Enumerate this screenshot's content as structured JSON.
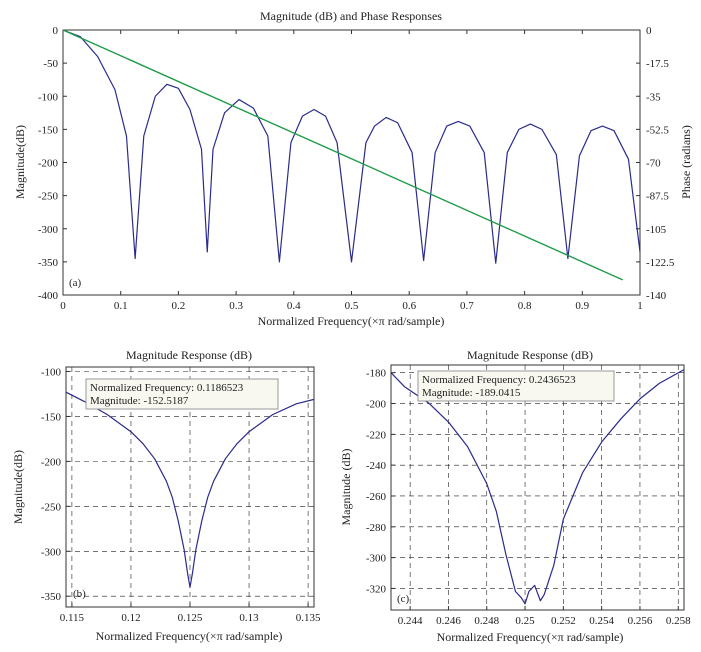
{
  "chart_data": [
    {
      "id": "a",
      "type": "line",
      "title": "Magnitude (dB) and Phase Responses",
      "xlabel": "Normalized Frequency(×π rad/sample)",
      "ylabel": "Magnitude(dB)",
      "ylabel_right": "Phase (radians)",
      "panel_label": "(a)",
      "xlim": [
        0,
        1
      ],
      "ylim": [
        -400,
        0
      ],
      "ylim_right": [
        -140,
        0
      ],
      "x_ticks": [
        "0",
        "0.1",
        "0.2",
        "0.3",
        "0.4",
        "0.5",
        "0.6",
        "0.7",
        "0.8",
        "0.9",
        "1"
      ],
      "y_ticks": [
        "0",
        "-50",
        "-100",
        "-150",
        "-200",
        "-250",
        "-300",
        "-350",
        "-400"
      ],
      "y_ticks_right": [
        "0",
        "-17.5",
        "-35",
        "-52.5",
        "-70",
        "-87.5",
        "-105",
        "-122.5",
        "-140"
      ],
      "grid": false,
      "series": [
        {
          "color": "#2b2b8c",
          "x": [
            0,
            0.03,
            0.06,
            0.09,
            0.11,
            0.125,
            0.14,
            0.16,
            0.18,
            0.2,
            0.22,
            0.24,
            0.25,
            0.26,
            0.28,
            0.305,
            0.33,
            0.355,
            0.375,
            0.395,
            0.415,
            0.435,
            0.455,
            0.475,
            0.5,
            0.525,
            0.54,
            0.56,
            0.58,
            0.605,
            0.625,
            0.645,
            0.665,
            0.685,
            0.705,
            0.73,
            0.75,
            0.77,
            0.79,
            0.81,
            0.83,
            0.855,
            0.875,
            0.895,
            0.915,
            0.935,
            0.955,
            0.98,
            1
          ],
          "values": [
            0,
            -10,
            -40,
            -90,
            -160,
            -345,
            -160,
            -100,
            -82,
            -88,
            -120,
            -180,
            -335,
            -180,
            -125,
            -105,
            -118,
            -160,
            -350,
            -170,
            -130,
            -120,
            -130,
            -170,
            -350,
            -170,
            -145,
            -132,
            -140,
            -185,
            -348,
            -185,
            -145,
            -138,
            -145,
            -185,
            -352,
            -185,
            -150,
            -142,
            -150,
            -188,
            -345,
            -190,
            -152,
            -145,
            -152,
            -195,
            -335
          ]
        },
        {
          "color": "#1f9c4a",
          "axis": "right",
          "x": [
            0,
            0.97
          ],
          "values": [
            0,
            -132
          ]
        }
      ]
    },
    {
      "id": "b",
      "type": "line",
      "title": "Magnitude Response (dB)",
      "xlabel": "Normalized Frequency(×π rad/sample)",
      "ylabel": "Magnitude(dB)",
      "panel_label": "(b)",
      "xlim": [
        0.1145,
        0.1355
      ],
      "ylim": [
        -362,
        -95
      ],
      "x_ticks": [
        "0.115",
        "0.12",
        "0.125",
        "0.13",
        "0.135"
      ],
      "y_ticks": [
        "-100",
        "-150",
        "-200",
        "-250",
        "-300",
        "-350"
      ],
      "grid": true,
      "datatip": {
        "label1": "Normalized Frequency: 0.1186523",
        "label2": "Magnitude: -152.5187"
      },
      "series": [
        {
          "color": "#2b2b8c",
          "x": [
            0.1145,
            0.116,
            0.118,
            0.12,
            0.121,
            0.122,
            0.123,
            0.1235,
            0.124,
            0.1245,
            0.1248,
            0.125,
            0.1252,
            0.1255,
            0.126,
            0.1265,
            0.127,
            0.128,
            0.129,
            0.13,
            0.132,
            0.134,
            0.1355
          ],
          "values": [
            -123,
            -133,
            -148,
            -167,
            -180,
            -197,
            -222,
            -240,
            -266,
            -298,
            -325,
            -340,
            -325,
            -298,
            -266,
            -240,
            -222,
            -197,
            -180,
            -167,
            -148,
            -136,
            -131
          ]
        }
      ]
    },
    {
      "id": "c",
      "type": "line",
      "title": "Magnitude Response (dB)",
      "xlabel": "Normalized Frequency(×π rad/sample)",
      "ylabel": "Magnitude (dB)",
      "panel_label": "(c)",
      "xlim": [
        0.243,
        0.2583
      ],
      "ylim": [
        -334,
        -175
      ],
      "x_ticks": [
        "0.244",
        "0.246",
        "0.248",
        "0.25",
        "0.252",
        "0.254",
        "0.256",
        "0.258"
      ],
      "y_ticks": [
        "-180",
        "-200",
        "-220",
        "-240",
        "-260",
        "-280",
        "-300",
        "-320"
      ],
      "grid": true,
      "datatip": {
        "label1": "Normalized Frequency: 0.2436523",
        "label2": "Magnitude: -189.0415"
      },
      "series": [
        {
          "color": "#2b2b8c",
          "x": [
            0.243,
            0.2437,
            0.245,
            0.246,
            0.247,
            0.248,
            0.2485,
            0.249,
            0.2495,
            0.2498,
            0.25,
            0.2502,
            0.2505,
            0.2508,
            0.251,
            0.2515,
            0.252,
            0.253,
            0.254,
            0.255,
            0.256,
            0.257,
            0.2583
          ],
          "values": [
            -180,
            -189,
            -200,
            -212,
            -228,
            -252,
            -270,
            -298,
            -322,
            -326,
            -330,
            -322,
            -318,
            -328,
            -324,
            -305,
            -275,
            -245,
            -225,
            -210,
            -197,
            -187,
            -178
          ]
        }
      ]
    }
  ]
}
